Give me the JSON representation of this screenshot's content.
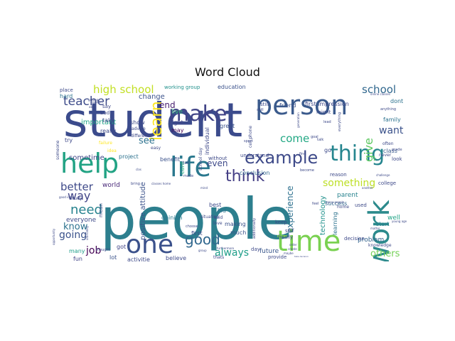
{
  "chart_data": {
    "type": "wordcloud",
    "title": "Word Cloud",
    "palette": "viridis",
    "words": [
      {
        "text": "student",
        "weight": 100,
        "color": "#3b4b8c"
      },
      {
        "text": "people",
        "weight": 98,
        "color": "#2d7f8e"
      },
      {
        "text": "person",
        "weight": 52,
        "color": "#3a5a8c"
      },
      {
        "text": "make",
        "weight": 44,
        "color": "#414487"
      },
      {
        "text": "help",
        "weight": 42,
        "color": "#22a384"
      },
      {
        "text": "life",
        "weight": 40,
        "color": "#2a788e"
      },
      {
        "text": "time",
        "weight": 38,
        "color": "#7ad151"
      },
      {
        "text": "work",
        "weight": 38,
        "color": "#2c8a8c"
      },
      {
        "text": "one",
        "weight": 35,
        "color": "#3b518b"
      },
      {
        "text": "thing",
        "weight": 34,
        "color": "#25858e"
      },
      {
        "text": "example",
        "weight": 27,
        "color": "#3e4a89"
      },
      {
        "text": "think",
        "weight": 26,
        "color": "#433d84"
      },
      {
        "text": "learn",
        "weight": 20,
        "color": "#fde725"
      },
      {
        "text": "good",
        "weight": 22,
        "color": "#31688e"
      },
      {
        "text": "teacher",
        "weight": 16,
        "color": "#3e4c8a"
      },
      {
        "text": "high school",
        "weight": 14,
        "color": "#c2df23"
      },
      {
        "text": "school",
        "weight": 14,
        "color": "#31688e"
      },
      {
        "text": "need",
        "weight": 17,
        "color": "#26828e"
      },
      {
        "text": "way",
        "weight": 15,
        "color": "#414487"
      },
      {
        "text": "give",
        "weight": 15,
        "color": "#5ec962"
      },
      {
        "text": "want",
        "weight": 15,
        "color": "#3b528b"
      },
      {
        "text": "come",
        "weight": 14,
        "color": "#22a884"
      },
      {
        "text": "something",
        "weight": 14,
        "color": "#bddf26"
      },
      {
        "text": "better",
        "weight": 14,
        "color": "#3e4989"
      },
      {
        "text": "know",
        "weight": 13,
        "color": "#2c728e"
      },
      {
        "text": "going",
        "weight": 13,
        "color": "#3b528b"
      },
      {
        "text": "job",
        "weight": 13,
        "color": "#440154"
      },
      {
        "text": "always",
        "weight": 13,
        "color": "#1f9e89"
      },
      {
        "text": "experience",
        "weight": 12,
        "color": "#2d708e"
      },
      {
        "text": "others",
        "weight": 12,
        "color": "#73d056"
      },
      {
        "text": "even",
        "weight": 12,
        "color": "#3e4989"
      },
      {
        "text": "see",
        "weight": 12,
        "color": "#2c728e"
      },
      {
        "text": "end",
        "weight": 11,
        "color": "#481f70"
      },
      {
        "text": "technology",
        "weight": 10,
        "color": "#21918c"
      },
      {
        "text": "positive attitude",
        "weight": 10,
        "color": "#3b528b"
      },
      {
        "text": "important",
        "weight": 9,
        "color": "#20a486"
      },
      {
        "text": "change",
        "weight": 9,
        "color": "#3b528b"
      },
      {
        "text": "sometime",
        "weight": 9,
        "color": "#404688"
      },
      {
        "text": "parent",
        "weight": 9,
        "color": "#26828e"
      },
      {
        "text": "problem",
        "weight": 9,
        "color": "#33638d"
      },
      {
        "text": "future",
        "weight": 9,
        "color": "#39568c"
      },
      {
        "text": "cant",
        "weight": 9,
        "color": "#29af7f"
      },
      {
        "text": "success",
        "weight": 8,
        "color": "#31688e"
      },
      {
        "text": "everyone",
        "weight": 8,
        "color": "#3e4a89"
      },
      {
        "text": "individual",
        "weight": 8,
        "color": "#3e4989"
      },
      {
        "text": "world",
        "weight": 8,
        "color": "#482878"
      },
      {
        "text": "live",
        "weight": 8,
        "color": "#35b779"
      },
      {
        "text": "may",
        "weight": 8,
        "color": "#440154"
      },
      {
        "text": "take",
        "weight": 8,
        "color": "#3e4a89"
      },
      {
        "text": "really",
        "weight": 8,
        "color": "#3e4c8a"
      },
      {
        "text": "first impression",
        "weight": 7,
        "color": "#3e4989"
      },
      {
        "text": "conclusion",
        "weight": 7,
        "color": "#31688e"
      },
      {
        "text": "opinion",
        "weight": 7,
        "color": "#2a788e"
      },
      {
        "text": "learning",
        "weight": 7,
        "color": "#2c728e"
      },
      {
        "text": "start",
        "weight": 7,
        "color": "#26828e"
      },
      {
        "text": "class",
        "weight": 7,
        "color": "#38598c"
      },
      {
        "text": "family",
        "weight": 7,
        "color": "#2c728e"
      },
      {
        "text": "friend",
        "weight": 7,
        "color": "#3b528b"
      },
      {
        "text": "right",
        "weight": 7,
        "color": "#414487"
      },
      {
        "text": "show",
        "weight": 7,
        "color": "#3e4a89"
      },
      {
        "text": "dont",
        "weight": 7,
        "color": "#2c728e"
      },
      {
        "text": "project",
        "weight": 7,
        "color": "#2c728e"
      },
      {
        "text": "benefit",
        "weight": 7,
        "color": "#3b528b"
      },
      {
        "text": "well",
        "weight": 7,
        "color": "#20a486"
      },
      {
        "text": "kid",
        "weight": 7,
        "color": "#2c728e"
      },
      {
        "text": "best",
        "weight": 7,
        "color": "#3e4a89"
      },
      {
        "text": "making",
        "weight": 7,
        "color": "#3b528b"
      },
      {
        "text": "much",
        "weight": 7,
        "color": "#3b528b"
      },
      {
        "text": "first",
        "weight": 7,
        "color": "#3e4a89"
      },
      {
        "text": "lot",
        "weight": 7,
        "color": "#3b528b"
      },
      {
        "text": "believe",
        "weight": 7,
        "color": "#3e4a89"
      },
      {
        "text": "activitie",
        "weight": 7,
        "color": "#3e4a89"
      },
      {
        "text": "got",
        "weight": 7,
        "color": "#414487"
      },
      {
        "text": "fun",
        "weight": 6,
        "color": "#414487"
      },
      {
        "text": "many",
        "weight": 6,
        "color": "#1f9e89"
      },
      {
        "text": "education",
        "weight": 6,
        "color": "#3b528b"
      },
      {
        "text": "working group",
        "weight": 6,
        "color": "#21918c"
      },
      {
        "text": "hard",
        "weight": 6,
        "color": "#2c728e"
      },
      {
        "text": "place",
        "weight": 6,
        "color": "#3e4a89"
      },
      {
        "text": "say",
        "weight": 6,
        "color": "#3e4989"
      },
      {
        "text": "bad",
        "weight": 6,
        "color": "#3e4989"
      },
      {
        "text": "try",
        "weight": 6,
        "color": "#3e4989"
      },
      {
        "text": "mean",
        "weight": 6,
        "color": "#3e4a89"
      },
      {
        "text": "great",
        "weight": 6,
        "color": "#3b528b"
      },
      {
        "text": "go",
        "weight": 6,
        "color": "#3e4a89"
      },
      {
        "text": "look",
        "weight": 6,
        "color": "#3e4989"
      },
      {
        "text": "keep",
        "weight": 6,
        "color": "#3e4a89"
      },
      {
        "text": "day",
        "weight": 6,
        "color": "#3e4a89"
      },
      {
        "text": "provide",
        "weight": 6,
        "color": "#3e4a89"
      },
      {
        "text": "finally",
        "weight": 6,
        "color": "#3e4a89"
      },
      {
        "text": "decision",
        "weight": 6,
        "color": "#3e4989"
      },
      {
        "text": "used",
        "weight": 6,
        "color": "#3e4a89"
      },
      {
        "text": "college",
        "weight": 6,
        "color": "#3e4a89"
      },
      {
        "text": "self",
        "weight": 6,
        "color": "#3e4a89"
      },
      {
        "text": "home",
        "weight": 5,
        "color": "#3e4a89"
      },
      {
        "text": "might",
        "weight": 6,
        "color": "#3e4a89"
      },
      {
        "text": "still",
        "weight": 6,
        "color": "#3e4a89"
      },
      {
        "text": "without",
        "weight": 6,
        "color": "#3e4a89"
      },
      {
        "text": "understand",
        "weight": 6,
        "color": "#3e4a89"
      },
      {
        "text": "different",
        "weight": 5,
        "color": "#3e4a89"
      },
      {
        "text": "idea",
        "weight": 5,
        "color": "#fde725"
      },
      {
        "text": "failure",
        "weight": 5,
        "color": "#fde725"
      },
      {
        "text": "easy",
        "weight": 5,
        "color": "#3e4a89"
      },
      {
        "text": "advice",
        "weight": 5,
        "color": "#3e4a89"
      },
      {
        "text": "never",
        "weight": 5,
        "color": "#3e4a89"
      },
      {
        "text": "often",
        "weight": 5,
        "color": "#3e4a89"
      },
      {
        "text": "reason",
        "weight": 5,
        "color": "#3e4a89"
      },
      {
        "text": "sport",
        "weight": 4,
        "color": "#3e4a89"
      },
      {
        "text": "cell phone",
        "weight": 5,
        "color": "#3e4a89"
      },
      {
        "text": "said",
        "weight": 5,
        "color": "#3e4a89"
      },
      {
        "text": "love",
        "weight": 5,
        "color": "#3e4a89"
      },
      {
        "text": "thats",
        "weight": 5,
        "color": "#3e4a89"
      },
      {
        "text": "school day",
        "weight": 5,
        "color": "#3e4a89"
      },
      {
        "text": "tell",
        "weight": 5,
        "color": "#3e4a89"
      },
      {
        "text": "study",
        "weight": 5,
        "color": "#3e4a89"
      },
      {
        "text": "thought",
        "weight": 4,
        "color": "#3e4a89"
      },
      {
        "text": "skill",
        "weight": 4,
        "color": "#3e4a89"
      },
      {
        "text": "lead",
        "weight": 4,
        "color": "#3e4a89"
      },
      {
        "text": "online classes",
        "weight": 3,
        "color": "#3e4a89"
      },
      {
        "text": "knowledge",
        "weight": 5,
        "color": "#3e4a89"
      },
      {
        "text": "grade",
        "weight": 4,
        "color": "#3e4a89"
      },
      {
        "text": "anything",
        "weight": 4,
        "color": "#3e4a89"
      },
      {
        "text": "challenge",
        "weight": 4,
        "color": "#3e4a89"
      },
      {
        "text": "additionally",
        "weight": 4,
        "color": "#3e4a89"
      },
      {
        "text": "furthermore",
        "weight": 4,
        "color": "#3e4a89"
      },
      {
        "text": "choose",
        "weight": 4,
        "color": "#3e4a89"
      },
      {
        "text": "situation",
        "weight": 5,
        "color": "#3e4a89"
      },
      {
        "text": "support",
        "weight": 4,
        "color": "#3e4a89"
      },
      {
        "text": "getting",
        "weight": 4,
        "color": "#3e4a89"
      },
      {
        "text": "able",
        "weight": 4,
        "color": "#3e4a89"
      },
      {
        "text": "someone",
        "weight": 5,
        "color": "#3e4a89"
      },
      {
        "text": "ultimately",
        "weight": 4,
        "color": "#3e4a89"
      },
      {
        "text": "good idea",
        "weight": 4,
        "color": "#3e4a89"
      },
      {
        "text": "create",
        "weight": 4,
        "color": "#3e4a89"
      },
      {
        "text": "order",
        "weight": 4,
        "color": "#3e4a89"
      },
      {
        "text": "maybe",
        "weight": 4,
        "color": "#3e4a89"
      },
      {
        "text": "group",
        "weight": 4,
        "color": "#3e4a89"
      },
      {
        "text": "another",
        "weight": 4,
        "color": "#3e4a89"
      },
      {
        "text": "young age",
        "weight": 3,
        "color": "#3e4a89"
      },
      {
        "text": "matter",
        "weight": 3,
        "color": "#3e4a89"
      },
      {
        "text": "many people",
        "weight": 3,
        "color": "#3e4a89"
      },
      {
        "text": "become",
        "weight": 4,
        "color": "#3e4a89"
      },
      {
        "text": "talk",
        "weight": 4,
        "color": "#3e4a89"
      },
      {
        "text": "goal",
        "weight": 4,
        "color": "#3e4a89"
      },
      {
        "text": "find",
        "weight": 4,
        "color": "#3e4a89"
      },
      {
        "text": "everything",
        "weight": 4,
        "color": "#3e4a89"
      },
      {
        "text": "generation",
        "weight": 3,
        "color": "#3e4a89"
      },
      {
        "text": "feel",
        "weight": 4,
        "color": "#3e4a89"
      },
      {
        "text": "made",
        "weight": 4,
        "color": "#3e4a89"
      },
      {
        "text": "mind",
        "weight": 4,
        "color": "#3e4a89"
      },
      {
        "text": "opportunity",
        "weight": 3,
        "color": "#3e4a89"
      },
      {
        "text": "clas",
        "weight": 3,
        "color": "#3e4a89"
      },
      {
        "text": "bring",
        "weight": 4,
        "color": "#3e4a89"
      },
      {
        "text": "classes home",
        "weight": 3,
        "color": "#3e4a89"
      },
      {
        "text": "take decision",
        "weight": 3,
        "color": "#3e4a89"
      }
    ]
  }
}
